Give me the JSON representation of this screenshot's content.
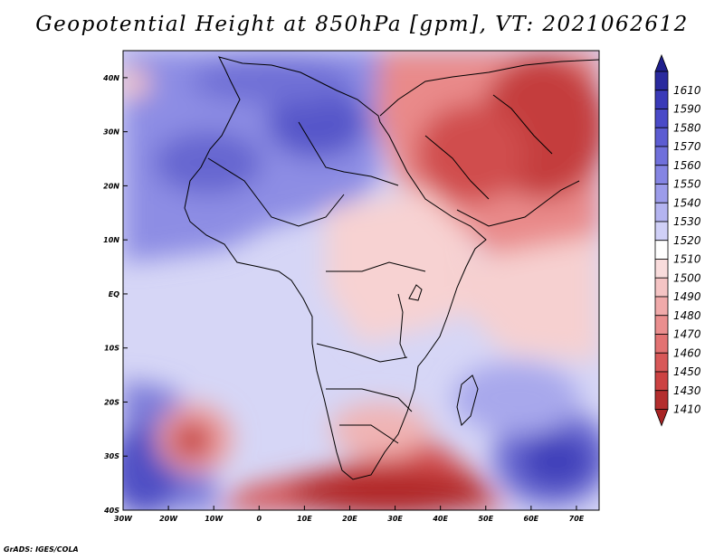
{
  "title": "Geopotential Height at 850hPa [gpm], VT: 2021062612",
  "footer": "GrADS: IGES/COLA",
  "map": {
    "lon_range": [
      -30,
      75
    ],
    "lat_range": [
      -40,
      45
    ],
    "lat_ticks": [
      {
        "value": 40,
        "label": "40N"
      },
      {
        "value": 30,
        "label": "30N"
      },
      {
        "value": 20,
        "label": "20N"
      },
      {
        "value": 10,
        "label": "10N"
      },
      {
        "value": 0,
        "label": "EQ"
      },
      {
        "value": -10,
        "label": "10S"
      },
      {
        "value": -20,
        "label": "20S"
      },
      {
        "value": -30,
        "label": "30S"
      },
      {
        "value": -40,
        "label": "40S"
      }
    ],
    "lon_ticks": [
      {
        "value": -30,
        "label": "30W"
      },
      {
        "value": -20,
        "label": "20W"
      },
      {
        "value": -10,
        "label": "10W"
      },
      {
        "value": 0,
        "label": "0"
      },
      {
        "value": 10,
        "label": "10E"
      },
      {
        "value": 20,
        "label": "20E"
      },
      {
        "value": 30,
        "label": "30E"
      },
      {
        "value": 40,
        "label": "40E"
      },
      {
        "value": 50,
        "label": "50E"
      },
      {
        "value": 60,
        "label": "60E"
      },
      {
        "value": 70,
        "label": "70E"
      }
    ]
  },
  "colorbar": {
    "levels": [
      {
        "label": "1610",
        "color": "#2a2a9e"
      },
      {
        "label": "1590",
        "color": "#3a3ab8"
      },
      {
        "label": "1580",
        "color": "#4a4ac8"
      },
      {
        "label": "1570",
        "color": "#5c5cd2"
      },
      {
        "label": "1560",
        "color": "#7070db"
      },
      {
        "label": "1550",
        "color": "#8585e3"
      },
      {
        "label": "1540",
        "color": "#9c9cea"
      },
      {
        "label": "1530",
        "color": "#b4b4f0"
      },
      {
        "label": "1520",
        "color": "#d0d0f7"
      },
      {
        "label": "1510",
        "color": "#ffffff"
      },
      {
        "label": "1500",
        "color": "#f9dcdc"
      },
      {
        "label": "1490",
        "color": "#f5c4c4"
      },
      {
        "label": "1480",
        "color": "#f0aaaa"
      },
      {
        "label": "1470",
        "color": "#ea8e8e"
      },
      {
        "label": "1460",
        "color": "#e27272"
      },
      {
        "label": "1450",
        "color": "#d85858"
      },
      {
        "label": "1430",
        "color": "#cc4242"
      },
      {
        "label": "1410",
        "color": "#b42e2e"
      }
    ],
    "top_color": "#1e1e8c",
    "bottom_color": "#a82424"
  }
}
